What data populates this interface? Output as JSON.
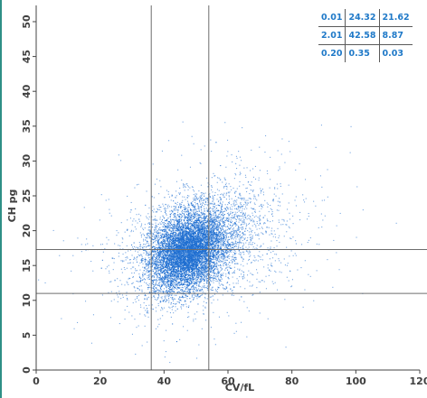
{
  "chart_data": {
    "type": "scatter",
    "xlabel": "CV/fL",
    "ylabel": "CH pg",
    "xlim": [
      0,
      120
    ],
    "ylim": [
      0,
      50
    ],
    "x_ticks": [
      "0",
      "20",
      "40",
      "60",
      "80",
      "100",
      "120"
    ],
    "y_ticks": [
      "0",
      "5",
      "10",
      "15",
      "20",
      "25",
      "30",
      "35",
      "40",
      "45",
      "50"
    ],
    "gates": {
      "x": [
        36,
        54
      ],
      "y": [
        11,
        17.3
      ]
    },
    "point_color": "#1f6fd1",
    "cluster": {
      "center": [
        47,
        17
      ],
      "spread_x": [
        37,
        72
      ],
      "spread_y": [
        11,
        26
      ],
      "approx_points": 9000
    },
    "quadrant_table": [
      [
        "0.01",
        "24.32",
        "21.62"
      ],
      [
        "2.01",
        "42.58",
        "8.87"
      ],
      [
        "0.20",
        "0.35",
        "0.03"
      ]
    ]
  }
}
